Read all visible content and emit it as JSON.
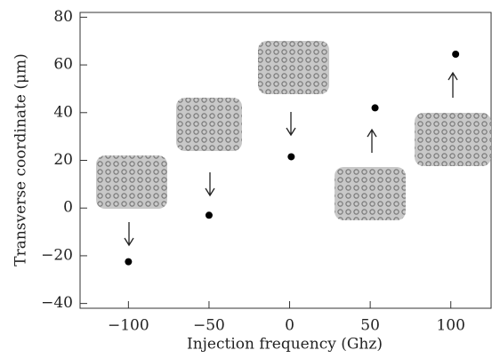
{
  "chart_data": {
    "type": "scatter",
    "x_label": "Injection frequency (Ghz)",
    "y_label": "Transverse coordinate (μm)",
    "x": [
      -100,
      -50,
      1,
      53,
      103
    ],
    "values": [
      -22.5,
      -3,
      21.5,
      42,
      64.5
    ],
    "color": "#000000",
    "xlim": [
      -130,
      125
    ],
    "ylim": [
      -42,
      82
    ],
    "xticks": [
      {
        "value": -100,
        "label": "−100"
      },
      {
        "value": -50,
        "label": "−50"
      },
      0,
      50,
      100
    ],
    "yticks": [
      {
        "value": -40,
        "label": "−40"
      },
      {
        "value": -20,
        "label": "−20"
      },
      0,
      20,
      40,
      60,
      80
    ]
  }
}
